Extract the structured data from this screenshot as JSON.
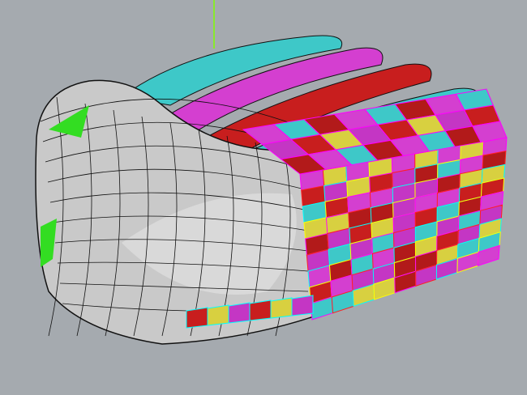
{
  "viewport": {
    "background": "#a5aaaf",
    "shell_color": "#c9c9c9",
    "edge_color": "#111111",
    "axis_color": "#7fff00",
    "panel_colors": [
      "#d43fd0",
      "#c81e1e",
      "#3ec8c8",
      "#d8d040",
      "#b21a1a",
      "#c436c4"
    ],
    "panel_edge_colors": [
      "#ff00ff",
      "#ff2020",
      "#00ffff",
      "#ffff00"
    ]
  }
}
